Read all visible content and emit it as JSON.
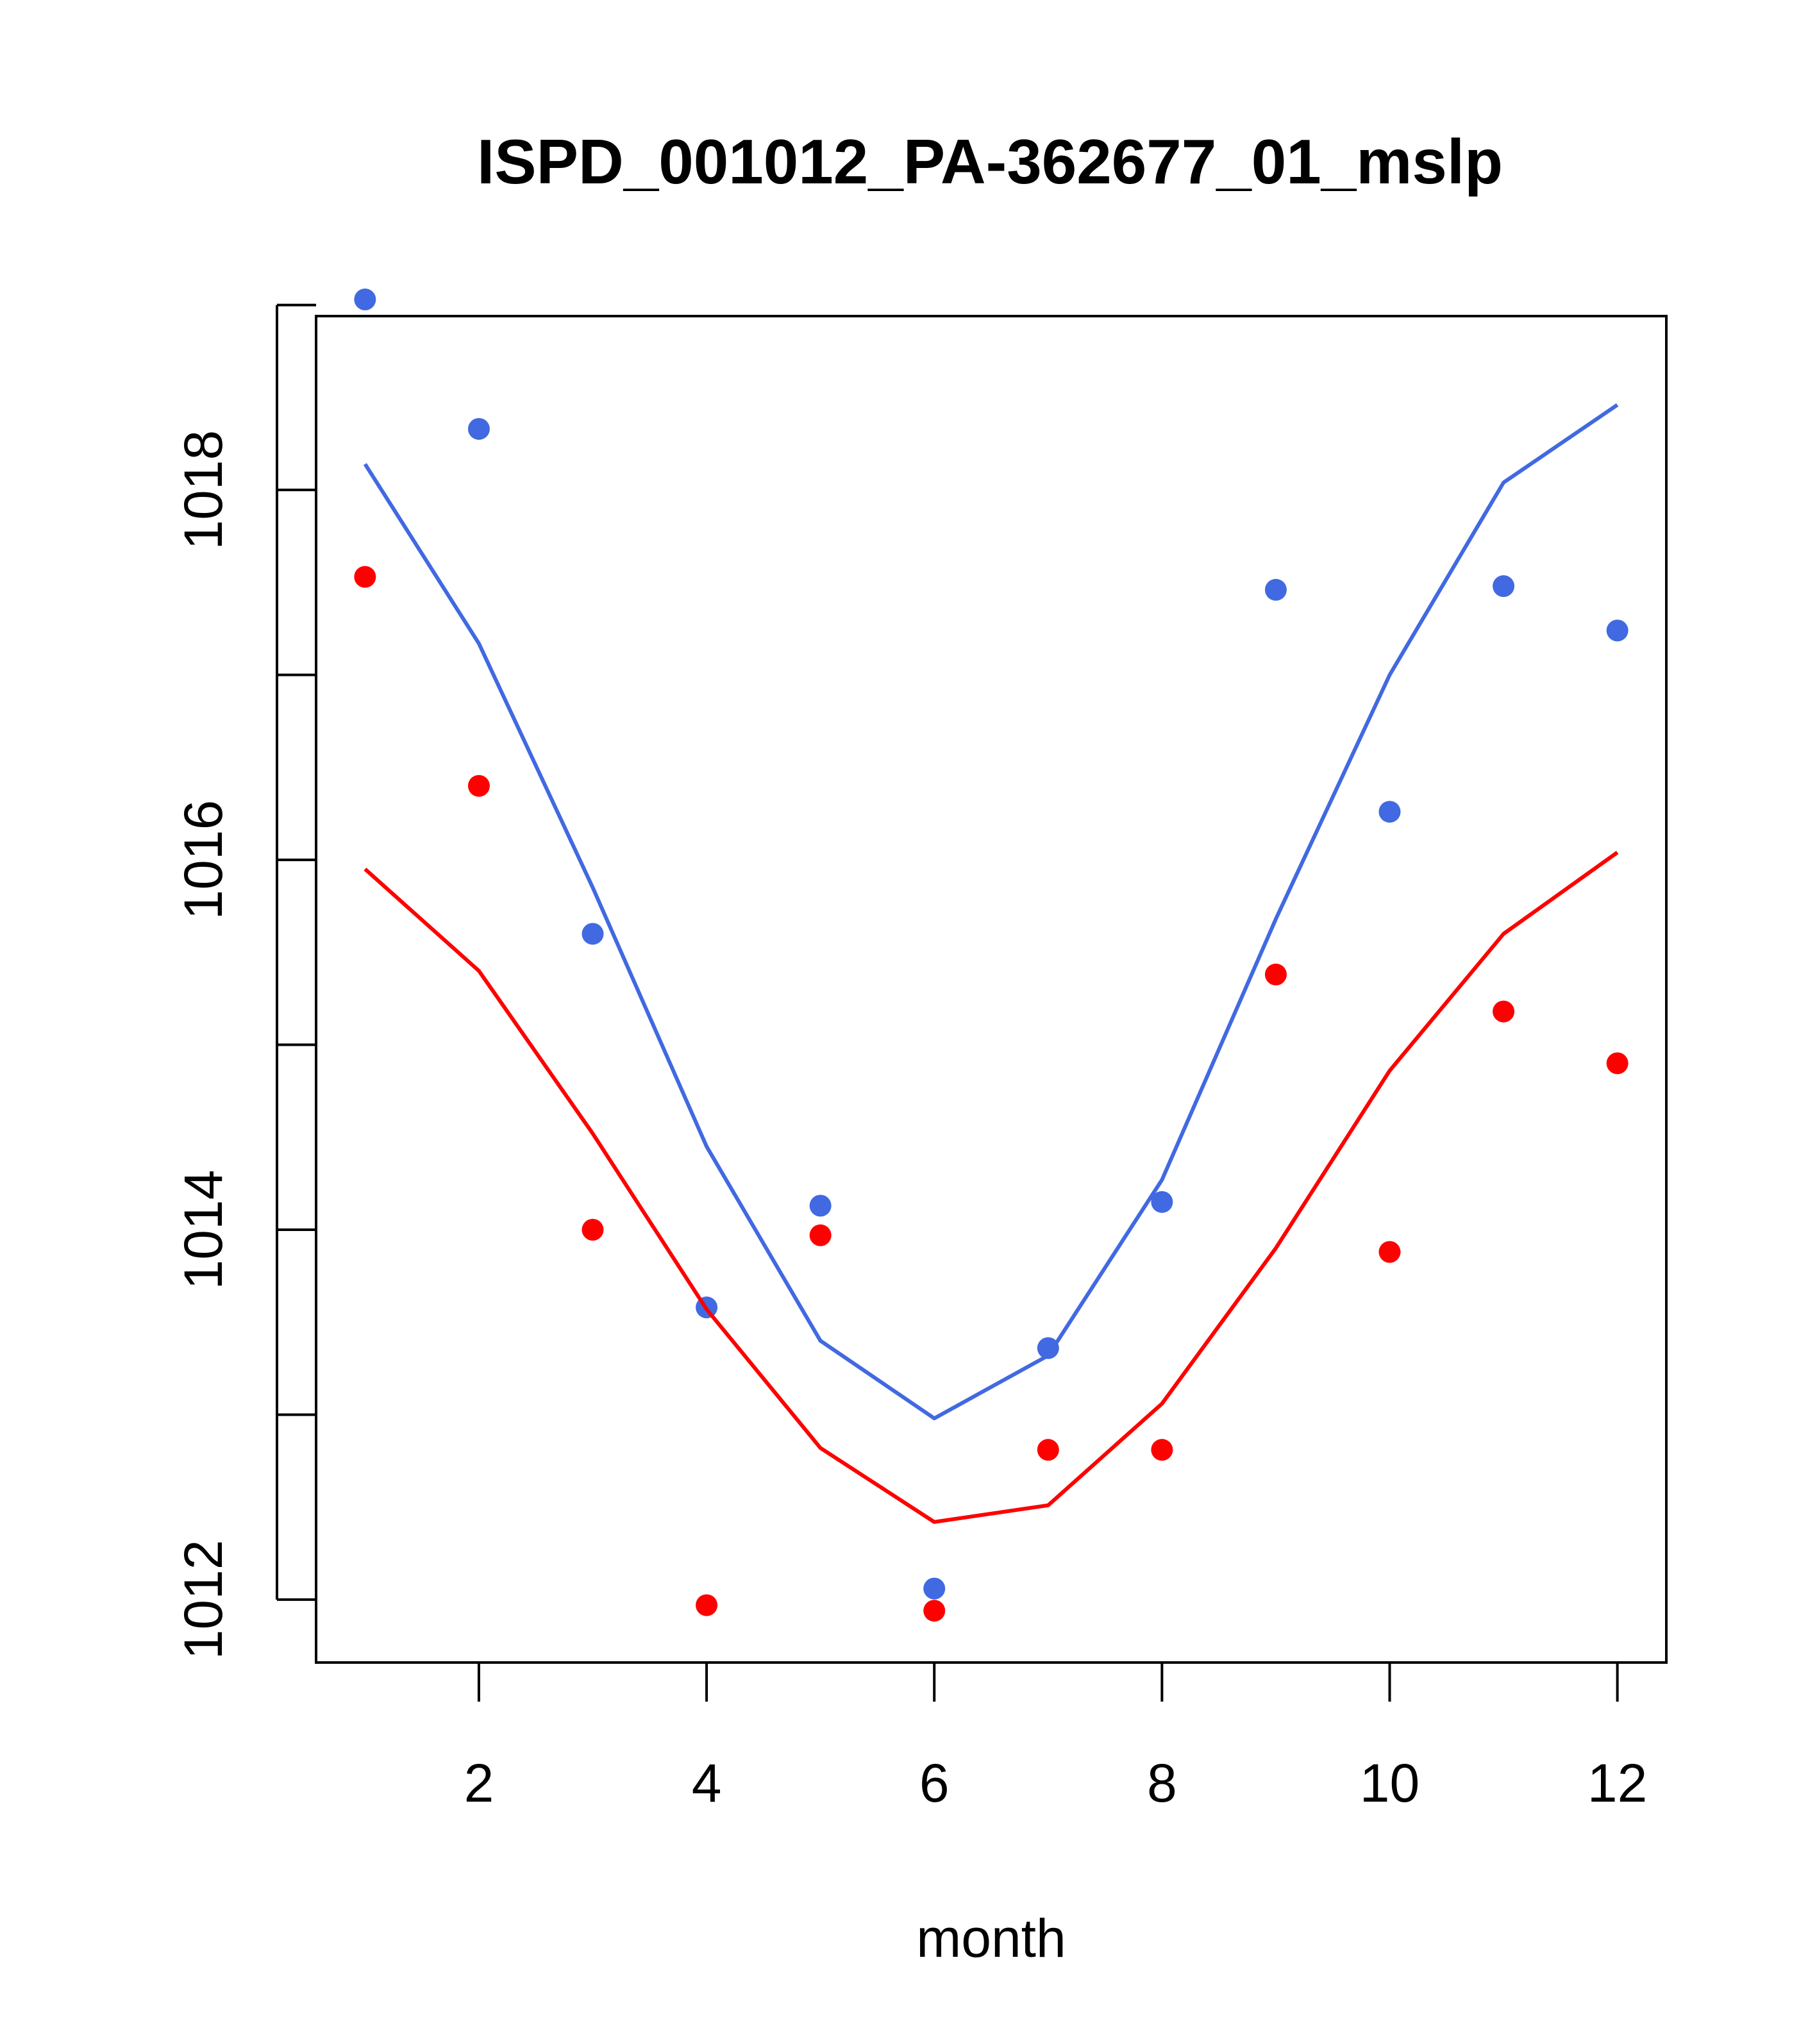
{
  "chart_data": {
    "type": "scatter",
    "title": "ISPD_001012_PA-362677_01_mslp",
    "xlabel": "month",
    "ylabel": "",
    "xlim": [
      0.57,
      12.43
    ],
    "ylim": [
      1011.66,
      1018.94
    ],
    "x_ticks": [
      2,
      4,
      6,
      8,
      10,
      12
    ],
    "x_tick_labels": [
      "2",
      "4",
      "6",
      "8",
      "10",
      "12"
    ],
    "y_ticks": [
      1012,
      1013,
      1014,
      1015,
      1016,
      1017,
      1018,
      1019
    ],
    "y_tick_labels": [
      "1012",
      "",
      "1014",
      "",
      "1016",
      "",
      "1018",
      ""
    ],
    "x": [
      1,
      2,
      3,
      4,
      5,
      6,
      7,
      8,
      9,
      10,
      11,
      12
    ],
    "series": [
      {
        "name": "blue points",
        "kind": "points",
        "color": "#4169e1",
        "values": [
          1019.03,
          1018.33,
          1015.6,
          1013.58,
          1014.13,
          1012.06,
          1013.36,
          1014.15,
          1017.46,
          1016.26,
          1017.48,
          1017.24
        ]
      },
      {
        "name": "blue line",
        "kind": "line",
        "color": "#4169e1",
        "values": [
          1018.14,
          1017.17,
          1015.85,
          1014.45,
          1013.4,
          1012.98,
          1013.32,
          1014.27,
          1015.68,
          1017.0,
          1018.04,
          1018.46
        ]
      },
      {
        "name": "red points",
        "kind": "points",
        "color": "#ff0000",
        "values": [
          1017.53,
          1016.4,
          1014.0,
          1011.97,
          1013.97,
          1011.94,
          1012.81,
          1012.81,
          1015.38,
          1013.88,
          1015.18,
          1014.9
        ]
      },
      {
        "name": "red line",
        "kind": "line",
        "color": "#ff0000",
        "values": [
          1015.95,
          1015.4,
          1014.52,
          1013.57,
          1012.82,
          1012.42,
          1012.51,
          1013.06,
          1013.9,
          1014.86,
          1015.6,
          1016.04
        ]
      }
    ]
  }
}
